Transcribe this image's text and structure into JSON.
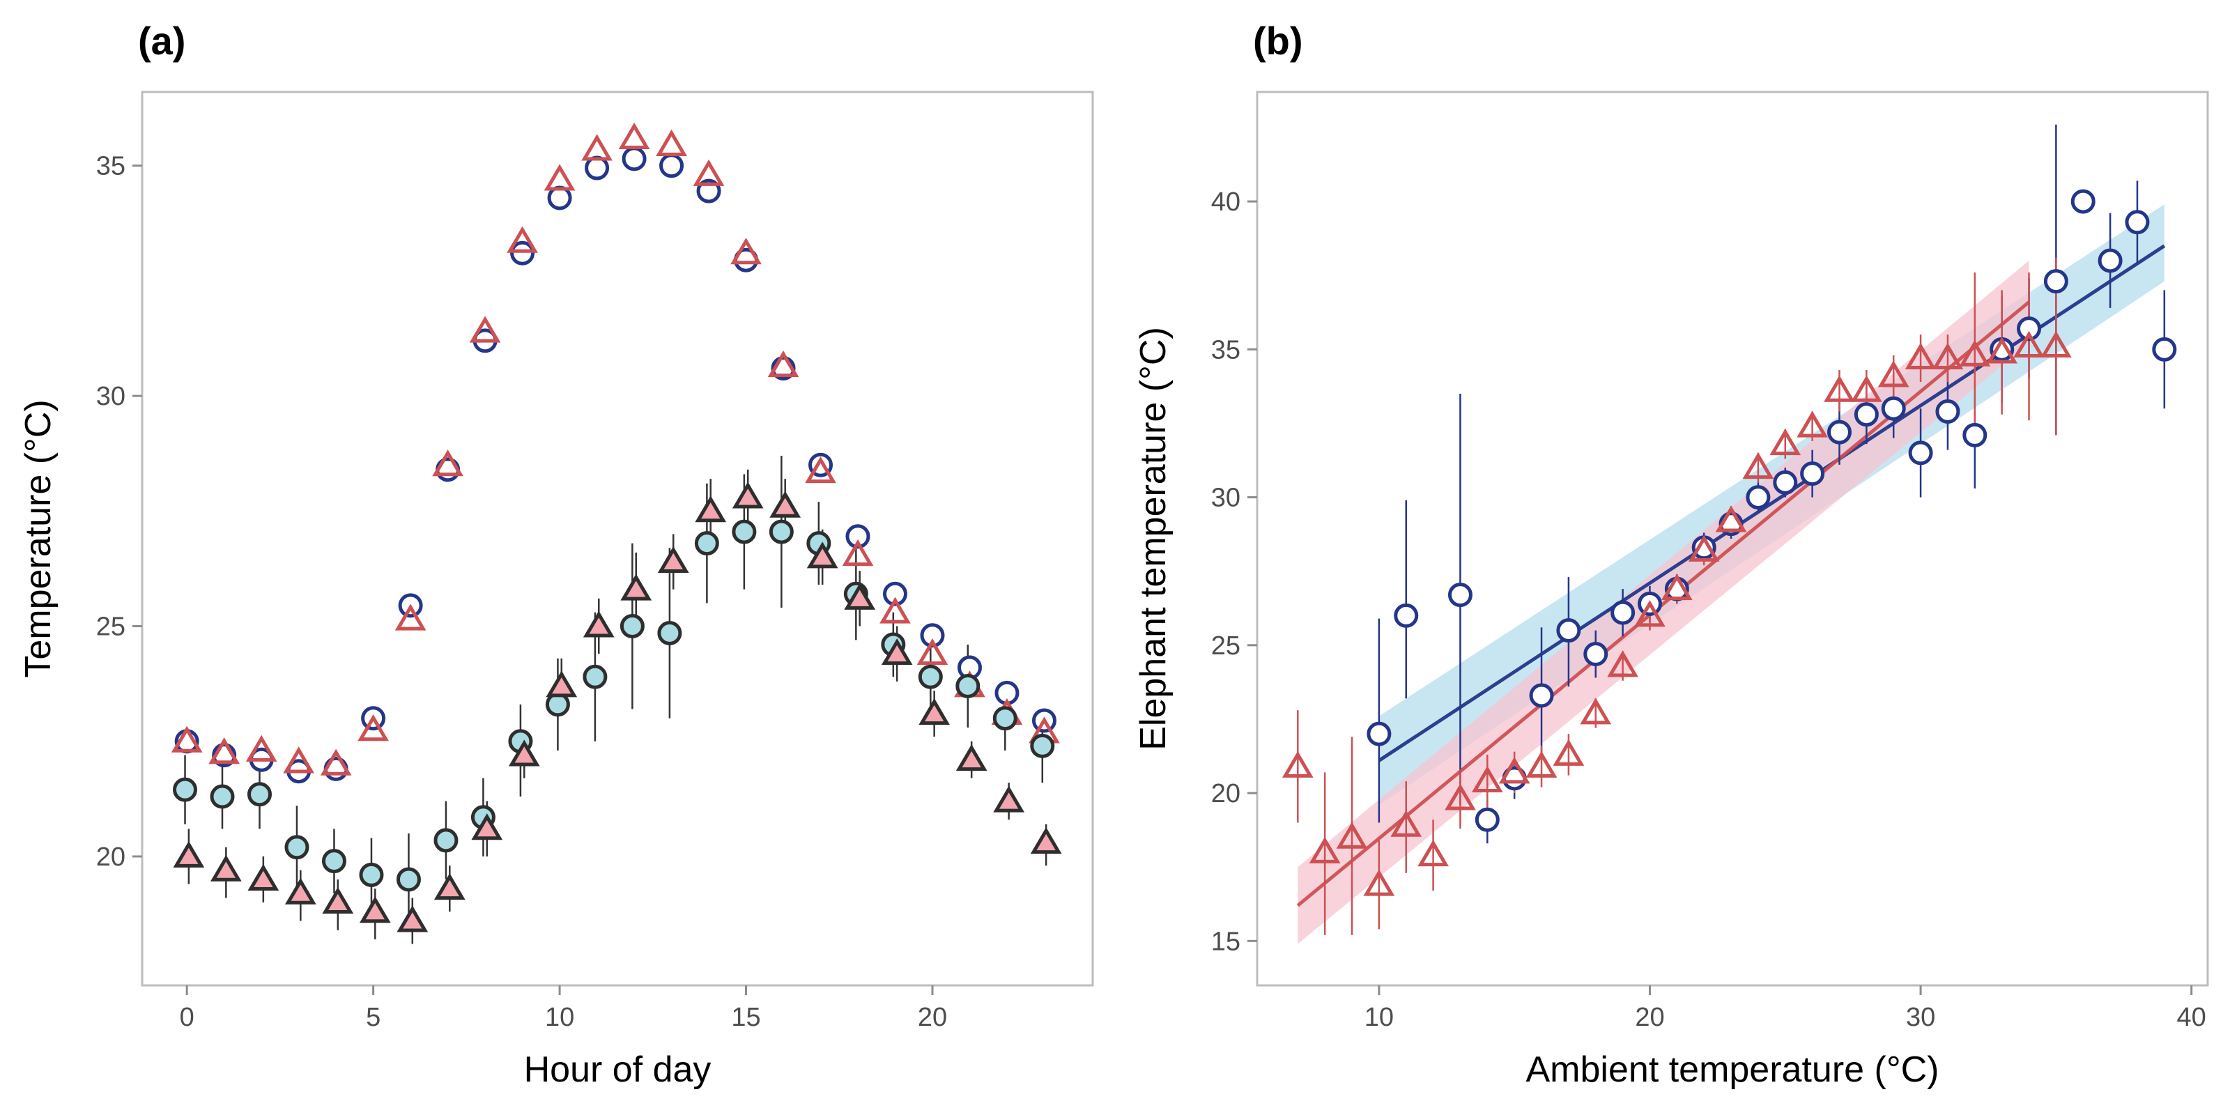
{
  "figure": {
    "panels": [
      {
        "tag": "(a)",
        "xlabel": "Hour of day",
        "ylabel": "Temperature (°C)"
      },
      {
        "tag": "(b)",
        "xlabel": "Ambient temperature (°C)",
        "ylabel": "Elephant temperature (°C)"
      }
    ]
  },
  "colors": {
    "navy": "#23368a",
    "red": "#cd5052",
    "light_blue_fill": "#acdce3",
    "pink_fill": "#f3a6b0",
    "dark_outline": "#2e2e2e",
    "ci_blue": "#b6dcee",
    "ci_pink": "#f7c4d0"
  },
  "chart_data": [
    {
      "type": "scatter",
      "title": "(a)",
      "xlabel": "Hour of day",
      "ylabel": "Temperature (°C)",
      "xlim": [
        -1.2,
        24.3
      ],
      "ylim": [
        17.2,
        36.6
      ],
      "xticks": [
        0,
        5,
        10,
        15,
        20
      ],
      "yticks": [
        20,
        25,
        30,
        35
      ],
      "grid": false,
      "x": [
        0,
        1,
        2,
        3,
        4,
        5,
        6,
        7,
        8,
        9,
        10,
        11,
        12,
        13,
        14,
        15,
        16,
        17,
        18,
        19,
        20,
        21,
        22,
        23
      ],
      "series": [
        {
          "marker": "circle-open",
          "color": "#23368a",
          "values": [
            22.5,
            22.2,
            22.1,
            21.85,
            21.9,
            23.0,
            25.45,
            28.4,
            31.2,
            33.1,
            34.3,
            34.95,
            35.15,
            35.0,
            34.45,
            32.95,
            30.6,
            28.5,
            26.95,
            25.7,
            24.8,
            24.1,
            23.55,
            22.95
          ]
        },
        {
          "marker": "triangle-open",
          "color": "#cd5052",
          "values": [
            22.5,
            22.25,
            22.3,
            22.05,
            22.0,
            22.75,
            25.15,
            28.5,
            31.4,
            33.35,
            34.7,
            35.35,
            35.6,
            35.45,
            34.8,
            33.1,
            30.65,
            28.35,
            26.55,
            25.3,
            24.4,
            23.7,
            23.1,
            22.7
          ]
        },
        {
          "marker": "circle-filled",
          "color": "#acdce3",
          "values": [
            21.45,
            21.3,
            21.35,
            20.2,
            19.9,
            19.6,
            19.5,
            20.35,
            20.85,
            22.5,
            23.3,
            23.9,
            25.0,
            24.85,
            26.8,
            27.05,
            27.05,
            26.8,
            25.7,
            24.6,
            23.9,
            23.7,
            23.0,
            22.4
          ],
          "lower": [
            20.7,
            20.6,
            20.6,
            19.3,
            19.2,
            18.8,
            18.5,
            19.5,
            20.0,
            21.3,
            22.3,
            22.5,
            23.2,
            23.0,
            25.5,
            25.8,
            25.4,
            25.9,
            24.7,
            23.9,
            23.2,
            22.8,
            22.3,
            21.6
          ],
          "upper": [
            22.2,
            22.0,
            22.1,
            21.1,
            20.6,
            20.4,
            20.5,
            21.2,
            21.7,
            23.3,
            24.3,
            25.3,
            26.8,
            26.7,
            28.1,
            28.3,
            28.7,
            27.7,
            26.7,
            25.3,
            24.6,
            24.6,
            23.7,
            23.2
          ]
        },
        {
          "marker": "triangle-filled",
          "color": "#f3a6b0",
          "values": [
            20.0,
            19.7,
            19.5,
            19.2,
            19.0,
            18.8,
            18.6,
            19.3,
            20.6,
            22.2,
            23.7,
            25.0,
            25.8,
            26.4,
            27.5,
            27.8,
            27.6,
            26.5,
            25.6,
            24.4,
            23.1,
            22.1,
            21.2,
            20.3
          ],
          "lower": [
            19.4,
            19.1,
            19.0,
            18.6,
            18.4,
            18.2,
            18.1,
            18.8,
            20.0,
            21.7,
            23.1,
            24.4,
            25.0,
            25.8,
            26.8,
            27.2,
            26.9,
            25.9,
            25.0,
            23.8,
            22.6,
            21.7,
            20.8,
            19.8
          ],
          "upper": [
            20.6,
            20.2,
            20.0,
            19.7,
            19.5,
            19.3,
            19.1,
            19.8,
            21.2,
            22.7,
            24.3,
            25.6,
            26.6,
            27.0,
            28.2,
            28.4,
            28.2,
            27.1,
            26.2,
            25.0,
            23.6,
            22.5,
            21.6,
            20.7
          ]
        }
      ]
    },
    {
      "type": "scatter",
      "title": "(b)",
      "xlabel": "Ambient temperature (°C)",
      "ylabel": "Elephant temperature (°C)",
      "xlim": [
        5.5,
        40.6
      ],
      "ylim": [
        13.5,
        43.7
      ],
      "xticks": [
        10,
        20,
        30,
        40
      ],
      "yticks": [
        15,
        20,
        25,
        30,
        35,
        40
      ],
      "grid": false,
      "series": [
        {
          "marker": "circle-open",
          "color": "#23368a",
          "x": [
            10,
            11,
            13,
            14,
            15,
            16,
            17,
            18,
            19,
            20,
            21,
            22,
            23,
            24,
            25,
            26,
            27,
            28,
            29,
            30,
            31,
            32,
            33,
            34,
            35,
            36,
            37,
            38,
            39
          ],
          "values": [
            22.0,
            26.0,
            26.7,
            19.1,
            20.5,
            23.3,
            25.5,
            24.7,
            26.1,
            26.4,
            26.9,
            28.3,
            29.1,
            30.0,
            30.5,
            30.8,
            32.2,
            32.8,
            33.0,
            31.5,
            32.9,
            32.1,
            35.0,
            35.7,
            37.3,
            40.0,
            38.0,
            39.3,
            35.0
          ],
          "lower": [
            19.0,
            23.2,
            19.6,
            18.3,
            19.8,
            21.2,
            23.6,
            23.9,
            25.3,
            25.8,
            26.4,
            27.8,
            28.6,
            29.5,
            30.0,
            30.0,
            31.1,
            31.8,
            32.0,
            30.0,
            31.6,
            30.3,
            33.2,
            34.0,
            32.1,
            40.0,
            36.4,
            37.9,
            33.0
          ],
          "upper": [
            25.9,
            29.9,
            33.5,
            19.8,
            21.2,
            25.6,
            27.3,
            25.5,
            26.9,
            27.0,
            27.4,
            28.8,
            29.6,
            30.5,
            31.0,
            31.6,
            33.3,
            33.8,
            34.0,
            33.0,
            34.2,
            33.9,
            36.8,
            37.4,
            42.6,
            40.0,
            39.6,
            40.7,
            37.0
          ]
        },
        {
          "marker": "triangle-open",
          "color": "#cd5052",
          "x": [
            7,
            8,
            9,
            10,
            11,
            12,
            13,
            14,
            15,
            16,
            17,
            18,
            19,
            20,
            21,
            22,
            23,
            24,
            25,
            26,
            27,
            28,
            29,
            30,
            31,
            32,
            33,
            34,
            35
          ],
          "values": [
            20.9,
            18.0,
            18.5,
            16.9,
            18.9,
            17.9,
            19.8,
            20.4,
            20.7,
            20.9,
            21.3,
            22.7,
            24.3,
            26.0,
            26.9,
            28.2,
            29.2,
            31.0,
            31.8,
            32.4,
            33.6,
            33.6,
            34.1,
            34.7,
            34.7,
            34.8,
            34.9,
            35.1,
            35.1
          ],
          "lower": [
            19.0,
            15.2,
            15.2,
            15.4,
            17.3,
            16.7,
            18.8,
            19.5,
            20.0,
            20.2,
            20.6,
            22.2,
            23.8,
            25.5,
            26.4,
            27.7,
            28.7,
            30.5,
            31.3,
            31.9,
            32.9,
            32.9,
            33.4,
            33.9,
            33.9,
            32.0,
            32.8,
            32.6,
            32.1
          ],
          "upper": [
            22.8,
            20.7,
            21.9,
            18.4,
            20.4,
            19.1,
            20.8,
            21.3,
            21.4,
            21.6,
            22.0,
            23.2,
            24.8,
            26.5,
            27.4,
            28.7,
            29.7,
            31.5,
            32.3,
            32.9,
            34.3,
            34.3,
            34.8,
            35.5,
            35.5,
            37.6,
            37.0,
            37.6,
            38.1
          ]
        }
      ],
      "fits": [
        {
          "color": "#23368a",
          "ci_color": "#b6dcee",
          "x": [
            10,
            39
          ],
          "y": [
            21.1,
            38.5
          ],
          "ci_lower": [
            19.6,
            37.3
          ],
          "ci_upper": [
            22.6,
            39.9
          ]
        },
        {
          "color": "#cd5052",
          "ci_color": "#f7c4d0",
          "x": [
            7,
            34
          ],
          "y": [
            16.2,
            36.6
          ],
          "ci_lower": [
            14.9,
            35.2
          ],
          "ci_upper": [
            17.5,
            38.0
          ]
        }
      ]
    }
  ]
}
